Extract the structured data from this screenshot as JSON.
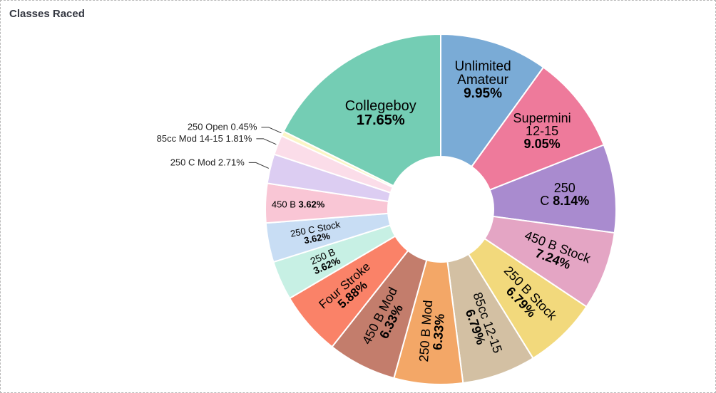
{
  "panel": {
    "title": "Classes Raced"
  },
  "chart_data": {
    "type": "pie",
    "title": "Classes Raced",
    "donut": true,
    "slices": [
      {
        "name": "Unlimited Amateur",
        "value": 9.95,
        "label": "9.95%",
        "color": "#7aabd6"
      },
      {
        "name": "Supermini 12-15",
        "value": 9.05,
        "label": "9.05%",
        "color": "#ee7a9b"
      },
      {
        "name": "250 C",
        "value": 8.14,
        "label": "8.14%",
        "color": "#a98bcf"
      },
      {
        "name": "450 B Stock",
        "value": 7.24,
        "label": "7.24%",
        "color": "#e4a5c4"
      },
      {
        "name": "250 B Stock",
        "value": 6.79,
        "label": "6.79%",
        "color": "#f2d97c"
      },
      {
        "name": "85cc 12-15",
        "value": 6.79,
        "label": "6.79%",
        "color": "#d3c0a3"
      },
      {
        "name": "250 B Mod",
        "value": 6.33,
        "label": "6.33%",
        "color": "#f3a767"
      },
      {
        "name": "450 B Mod",
        "value": 6.33,
        "label": "6.33%",
        "color": "#c37d6c"
      },
      {
        "name": "Four Stroke",
        "value": 5.88,
        "label": "5.88%",
        "color": "#fa8268"
      },
      {
        "name": "250 B",
        "value": 3.62,
        "label": "3.62%",
        "color": "#c7f0e4"
      },
      {
        "name": "250 C Stock",
        "value": 3.62,
        "label": "3.62%",
        "color": "#c8ddf4"
      },
      {
        "name": "450 B",
        "value": 3.62,
        "label": "3.62%",
        "color": "#f9c6d5"
      },
      {
        "name": "250 C Mod",
        "value": 2.71,
        "label": "2.71%",
        "color": "#dccdf2"
      },
      {
        "name": "85cc Mod 14-15",
        "value": 1.81,
        "label": "1.81%",
        "color": "#fbdde9"
      },
      {
        "name": "250 Open",
        "value": 0.45,
        "label": "0.45%",
        "color": "#fbf6c6"
      },
      {
        "name": "Collegeboy",
        "value": 17.65,
        "label": "17.65%",
        "color": "#74cdb4"
      }
    ]
  }
}
